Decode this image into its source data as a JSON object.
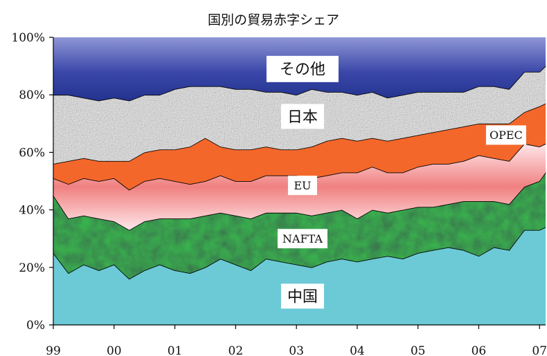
{
  "chart_data": {
    "type": "area",
    "stacked": true,
    "title": "国別の貿易赤字シェア",
    "xlabel": "",
    "ylabel": "",
    "x_ticks": [
      "99",
      "00",
      "01",
      "02",
      "03",
      "04",
      "05",
      "06",
      "07"
    ],
    "y_ticks": [
      "0%",
      "20%",
      "40%",
      "60%",
      "80%",
      "100%"
    ],
    "ylim": [
      0,
      100
    ],
    "legend": "inline",
    "x": [
      1999,
      1999.25,
      1999.5,
      1999.75,
      2000,
      2000.25,
      2000.5,
      2000.75,
      2001,
      2001.25,
      2001.5,
      2001.75,
      2002,
      2002.25,
      2002.5,
      2002.75,
      2003,
      2003.25,
      2003.5,
      2003.75,
      2004,
      2004.25,
      2004.5,
      2004.75,
      2005,
      2005.25,
      2005.5,
      2005.75,
      2006,
      2006.25,
      2006.5,
      2006.75,
      2007,
      2007.1
    ],
    "series": [
      {
        "name": "中国",
        "color": "#6ccad6",
        "values": [
          25,
          18,
          21,
          19,
          21,
          16,
          19,
          21,
          19,
          18,
          20,
          23,
          21,
          19,
          23,
          22,
          21,
          20,
          22,
          23,
          22,
          23,
          24,
          23,
          25,
          26,
          27,
          26,
          24,
          27,
          26,
          33,
          33,
          34
        ]
      },
      {
        "name": "NAFTA",
        "color": "#245c36",
        "values": [
          20,
          19,
          17,
          18,
          15,
          17,
          17,
          16,
          18,
          19,
          18,
          16,
          17,
          18,
          16,
          17,
          18,
          18,
          17,
          17,
          15,
          17,
          15,
          17,
          16,
          15,
          15,
          17,
          19,
          16,
          16,
          15,
          17,
          19
        ]
      },
      {
        "name": "EU",
        "color": "#f07e7e",
        "values": [
          6,
          12,
          13,
          13,
          15,
          14,
          14,
          14,
          13,
          12,
          12,
          13,
          12,
          13,
          13,
          13,
          13,
          13,
          13,
          13,
          16,
          15,
          14,
          13,
          14,
          15,
          14,
          14,
          16,
          15,
          15,
          15,
          12,
          10
        ]
      },
      {
        "name": "OPEC",
        "color": "#f4672b",
        "values": [
          5,
          8,
          7,
          7,
          6,
          10,
          10,
          10,
          11,
          13,
          15,
          10,
          11,
          11,
          10,
          9,
          9,
          11,
          12,
          12,
          11,
          10,
          11,
          12,
          11,
          11,
          12,
          12,
          11,
          12,
          13,
          11,
          14,
          14
        ]
      },
      {
        "name": "日本",
        "color": "#c8c8c8",
        "values": [
          24,
          23,
          21,
          21,
          22,
          21,
          20,
          19,
          21,
          21,
          18,
          21,
          21,
          21,
          19,
          20,
          19,
          20,
          17,
          16,
          16,
          16,
          15,
          15,
          15,
          14,
          13,
          12,
          13,
          13,
          12,
          14,
          12,
          13
        ]
      },
      {
        "name": "その他",
        "color": "#3c4aa6",
        "values": [
          20,
          20,
          21,
          22,
          21,
          22,
          20,
          20,
          18,
          17,
          17,
          17,
          18,
          18,
          19,
          19,
          20,
          18,
          19,
          19,
          20,
          19,
          21,
          20,
          19,
          19,
          19,
          19,
          17,
          17,
          18,
          12,
          12,
          10
        ]
      }
    ]
  }
}
